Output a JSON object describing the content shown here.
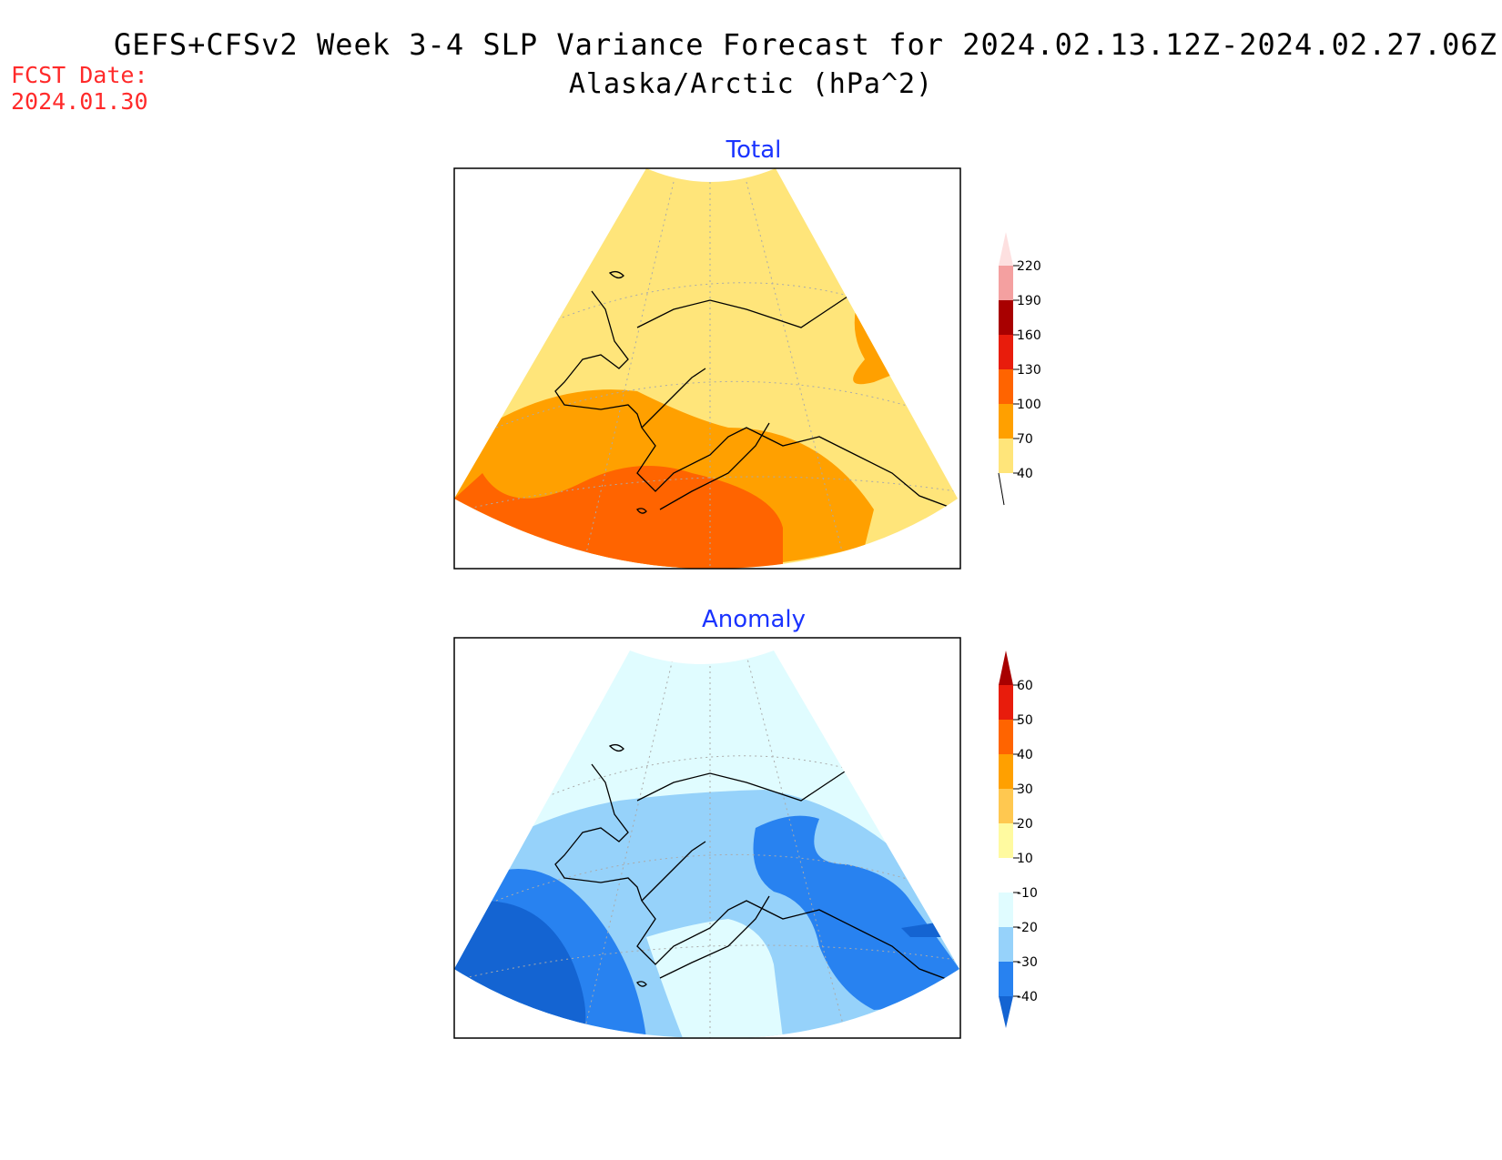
{
  "header": {
    "title": "GEFS+CFSv2 Week 3-4 SLP Variance Forecast for 2024.02.13.12Z-2024.02.27.06Z",
    "subtitle": "Alaska/Arctic (hPa^2)",
    "fcst_label": "FCST Date:",
    "fcst_date": "2024.01.30"
  },
  "panels": {
    "total": {
      "title": "Total",
      "colorbar": {
        "levels": [
          "40",
          "70",
          "100",
          "130",
          "160",
          "190",
          "220"
        ],
        "colors": [
          "#ffe57a",
          "#ffa000",
          "#ff6400",
          "#e81c0c",
          "#a80000",
          "#f4a0a0",
          "#fde0e0"
        ]
      }
    },
    "anomaly": {
      "title": "Anomaly",
      "colorbar": {
        "levels": [
          "60",
          "50",
          "40",
          "30",
          "20",
          "10",
          "-10",
          "-20",
          "-30",
          "-40"
        ],
        "colors": [
          "#c80000",
          "#ff6400",
          "#ffa000",
          "#ffc850",
          "#fff5a0",
          "#ffffff",
          "#e0fcff",
          "#96d2fa",
          "#2882f0",
          "#1464d2"
        ]
      }
    }
  }
}
